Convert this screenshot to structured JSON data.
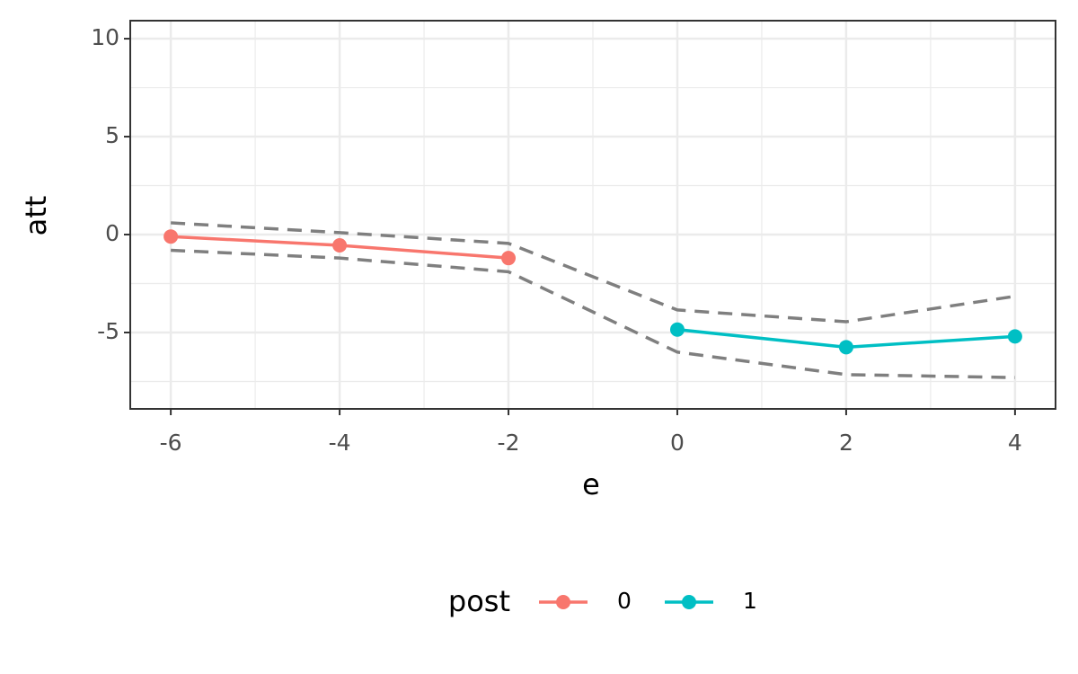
{
  "chart_data": {
    "type": "line",
    "x_label": "e",
    "y_label": "att",
    "x": [
      -6,
      -4,
      -2,
      0,
      2,
      4
    ],
    "series": [
      {
        "name": "0",
        "color": "#f8766d",
        "values": [
          -0.1,
          -0.55,
          -1.2,
          null,
          null,
          null
        ]
      },
      {
        "name": "1",
        "color": "#00bfc4",
        "values": [
          null,
          null,
          null,
          -4.85,
          -5.75,
          -5.2
        ]
      }
    ],
    "bands": {
      "color": "#7f7f7f",
      "upper": [
        0.6,
        0.1,
        -0.45,
        -3.85,
        -4.45,
        -3.15
      ],
      "lower": [
        -0.8,
        -1.2,
        -1.9,
        -6.0,
        -7.15,
        -7.3
      ]
    },
    "legend_title": "post",
    "legend_position": "bottom",
    "xlim": [
      -6.48,
      4.48
    ],
    "xticks": [
      -6,
      -4,
      -2,
      0,
      2,
      4
    ],
    "ylim": [
      -8.9,
      10.92
    ],
    "yticks": [
      -5,
      0,
      5,
      10
    ],
    "grid": true
  }
}
